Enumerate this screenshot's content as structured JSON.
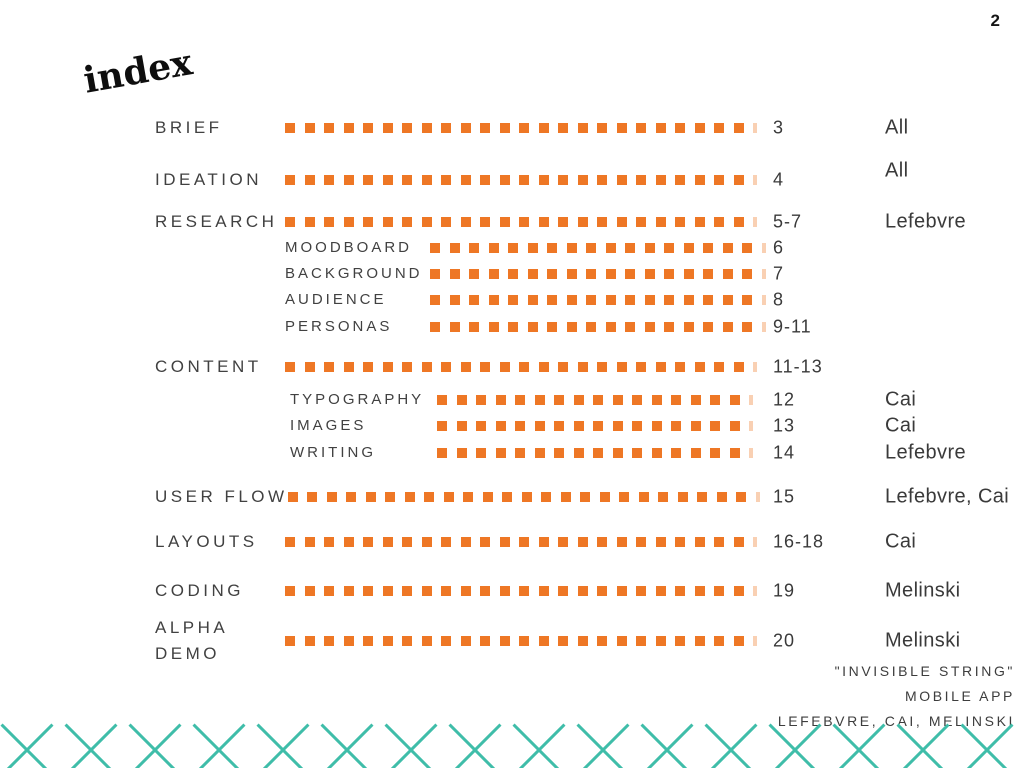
{
  "page_number": "2",
  "title": "index",
  "index": {
    "rows": [
      {
        "label": "BRIEF",
        "level": "main",
        "page": "3",
        "name": "All"
      },
      {
        "label": "IDEATION",
        "level": "main",
        "page": "4",
        "name": "All"
      },
      {
        "label": "RESEARCH",
        "level": "main",
        "page": "5-7",
        "name": "Lefebvre"
      },
      {
        "label": "MOODBOARD",
        "level": "sub1",
        "page": "6",
        "name": ""
      },
      {
        "label": "BACKGROUND",
        "level": "sub1",
        "page": "7",
        "name": ""
      },
      {
        "label": "AUDIENCE",
        "level": "sub1",
        "page": "8",
        "name": ""
      },
      {
        "label": "PERSONAS",
        "level": "sub1",
        "page": "9-11",
        "name": ""
      },
      {
        "label": "CONTENT",
        "level": "main",
        "page": "11-13",
        "name": ""
      },
      {
        "label": "TYPOGRAPHY",
        "level": "sub2",
        "page": "12",
        "name": "Cai"
      },
      {
        "label": "IMAGES",
        "level": "sub2",
        "page": "13",
        "name": "Cai"
      },
      {
        "label": "WRITING",
        "level": "sub2",
        "page": "14",
        "name": "Lefebvre"
      },
      {
        "label": "USER FLOW",
        "level": "main",
        "page": "15",
        "name": "Lefebvre, Cai"
      },
      {
        "label": "LAYOUTS",
        "level": "main",
        "page": "16-18",
        "name": "Cai"
      },
      {
        "label": "CODING",
        "level": "main",
        "page": "19",
        "name": "Melinski"
      },
      {
        "label": "ALPHA\nDEMO",
        "level": "main",
        "page": "20",
        "name": "Melinski"
      }
    ]
  },
  "credits": {
    "line1": "\"INVISIBLE STRING\"",
    "line2": "MOBILE APP",
    "line3": "LEFEBVRE, CAI, MELINSKI"
  },
  "colors": {
    "accent_orange": "#EE7725",
    "accent_teal": "#3FBDA9"
  }
}
